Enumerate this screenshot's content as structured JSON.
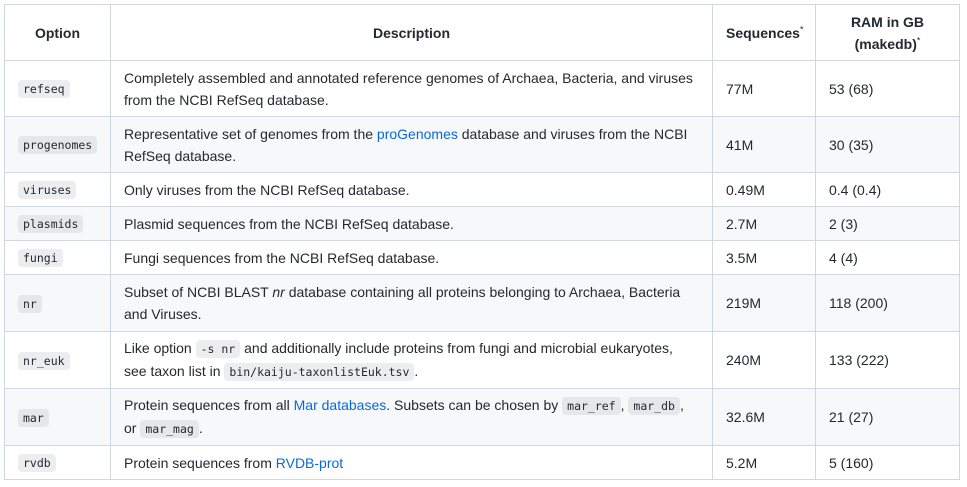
{
  "headers": {
    "option": "Option",
    "description": "Description",
    "sequences": "Sequences",
    "sequences_mark": "*",
    "ram_line1": "RAM in GB",
    "ram_line2": "(makedb)",
    "ram_mark": "*"
  },
  "rows": [
    {
      "option": "refseq",
      "desc_a": "Completely assembled and annotated reference genomes of Archaea, Bacteria, and viruses from the NCBI RefSeq database.",
      "sequences": "77M",
      "ram": "53 (68)"
    },
    {
      "option": "progenomes",
      "desc_a": "Representative set of genomes from the ",
      "link": "proGenomes",
      "desc_b": " database and viruses from the NCBI RefSeq database.",
      "sequences": "41M",
      "ram": "30 (35)"
    },
    {
      "option": "viruses",
      "desc_a": "Only viruses from the NCBI RefSeq database.",
      "sequences": "0.49M",
      "ram": "0.4 (0.4)"
    },
    {
      "option": "plasmids",
      "desc_a": "Plasmid sequences from the NCBI RefSeq database.",
      "sequences": "2.7M",
      "ram": "2 (3)"
    },
    {
      "option": "fungi",
      "desc_a": "Fungi sequences from the NCBI RefSeq database.",
      "sequences": "3.5M",
      "ram": "4 (4)"
    },
    {
      "option": "nr",
      "desc_a": "Subset of NCBI BLAST ",
      "em": "nr",
      "desc_b": " database containing all proteins belonging to Archaea, Bacteria and Viruses.",
      "sequences": "219M",
      "ram": "118 (200)"
    },
    {
      "option": "nr_euk",
      "desc_a": "Like option ",
      "code1": "-s nr",
      "desc_b": " and additionally include proteins from fungi and microbial eukaryotes, see taxon list in ",
      "code2": "bin/kaiju-taxonlistEuk.tsv",
      "desc_c": ".",
      "sequences": "240M",
      "ram": "133 (222)"
    },
    {
      "option": "mar",
      "desc_a": "Protein sequences from all ",
      "link": "Mar databases",
      "desc_b": ". Subsets can be chosen by ",
      "code1": "mar_ref",
      "desc_c": ", ",
      "code2": "mar_db",
      "desc_d": ", or ",
      "code3": "mar_mag",
      "desc_e": ".",
      "sequences": "32.6M",
      "ram": "21 (27)"
    },
    {
      "option": "rvdb",
      "desc_a": "Protein sequences from ",
      "link": "RVDB-prot",
      "sequences": "5.2M",
      "ram": "5 (160)"
    }
  ],
  "colors": {
    "link": "#0969da",
    "border": "#d0d7de",
    "alt_row": "#f6f8fa"
  }
}
